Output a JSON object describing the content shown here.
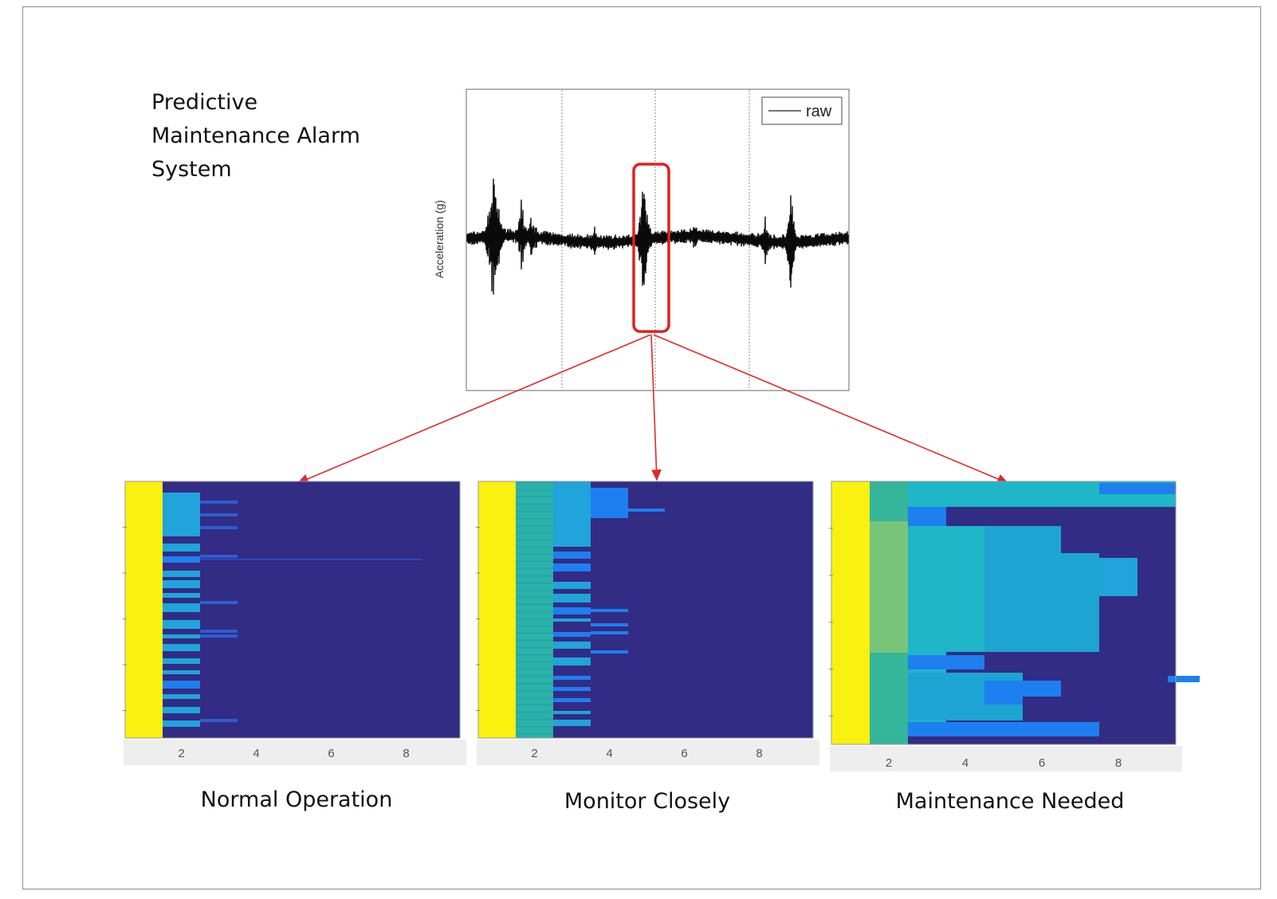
{
  "title_lines": [
    "Predictive",
    "Maintenance Alarm",
    "System"
  ],
  "waveform": {
    "ylabel": "Acceleration (g)",
    "legend": "raw"
  },
  "heatmap_ticks": [
    "2",
    "4",
    "6",
    "8"
  ],
  "captions": {
    "normal": "Normal Operation",
    "monitor": "Monitor Closely",
    "maintenance": "Maintenance Needed"
  },
  "colors": {
    "background_cell": "#322c84",
    "first_column": "#f9f10f",
    "highlight": "#e02020",
    "arrow": "#dd2b2b",
    "trace": "#0a0a0a"
  }
}
